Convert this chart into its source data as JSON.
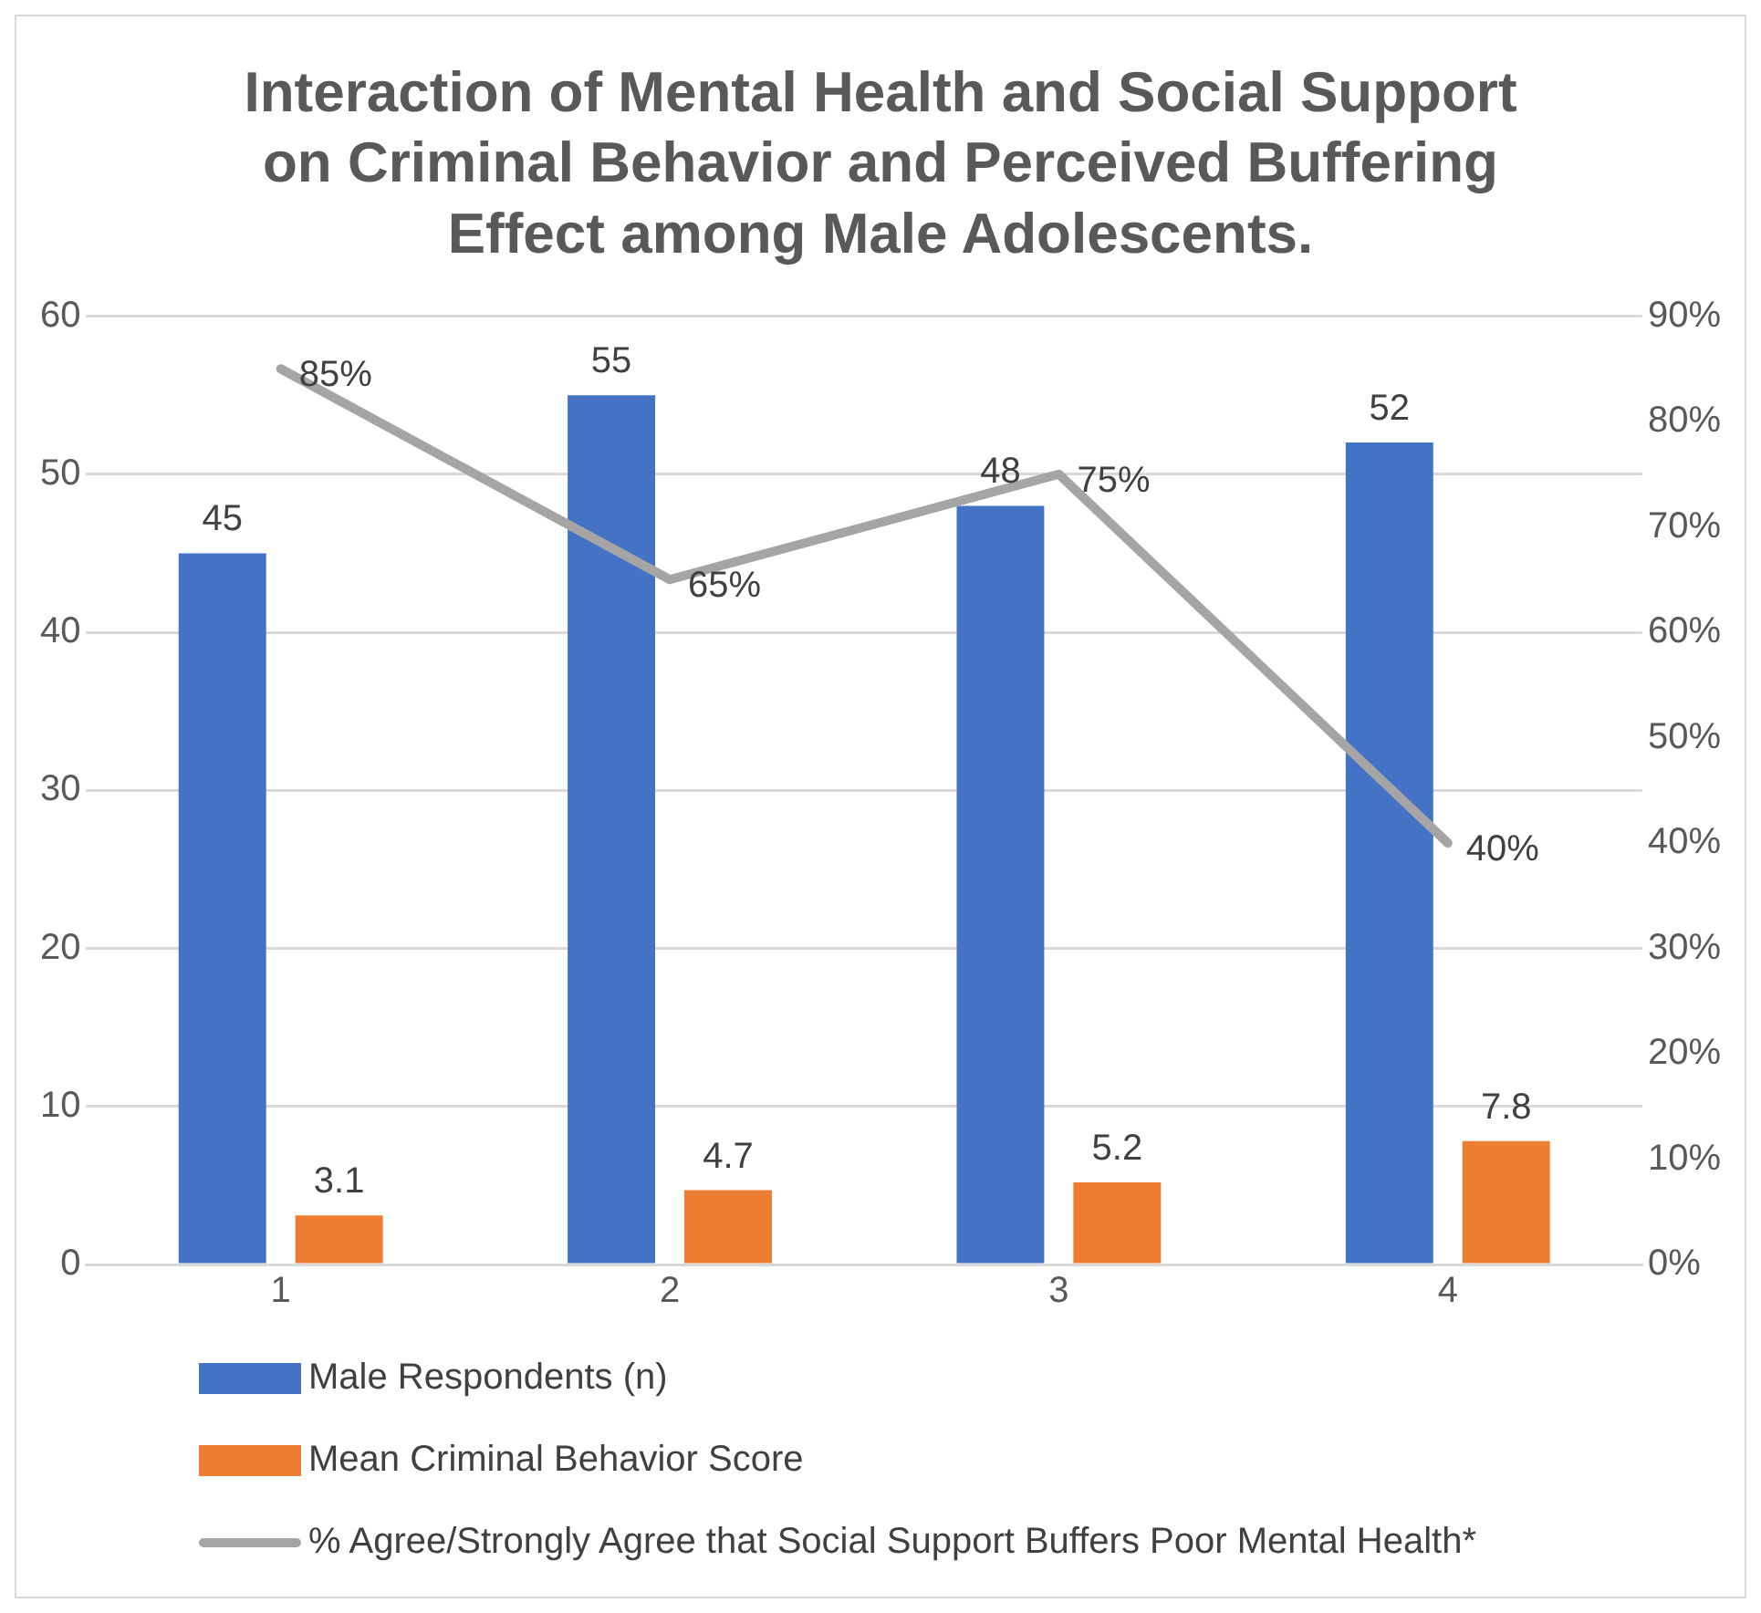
{
  "chart_data": {
    "type": "bar",
    "title": "Interaction of Mental Health and Social Support on Criminal Behavior and Perceived Buffering Effect among Male Adolescents.",
    "categories": [
      "1",
      "2",
      "3",
      "4"
    ],
    "series": [
      {
        "name": "Male Respondents (n)",
        "color": "#4472c4",
        "values": [
          45,
          55,
          48,
          52
        ],
        "value_labels": [
          "45",
          "55",
          "48",
          "52"
        ]
      },
      {
        "name": "Mean Criminal Behavior Score",
        "color": "#ed7d31",
        "values": [
          3.1,
          4.7,
          5.2,
          7.8
        ],
        "value_labels": [
          "3.1",
          "4.7",
          "5.2",
          "7.8"
        ]
      },
      {
        "name": "% Agree/Strongly Agree that Social Support Buffers Poor Mental Health*",
        "type": "line",
        "axis": "y2",
        "color": "#a5a5a5",
        "values": [
          85,
          65,
          75,
          40
        ],
        "value_labels": [
          "85%",
          "65%",
          "75%",
          "40%"
        ],
        "marker": "none",
        "line_style": "solid"
      }
    ],
    "ylim": [
      0,
      60
    ],
    "yticks": [
      0,
      10,
      20,
      30,
      40,
      50,
      60
    ],
    "y2lim": [
      0,
      90
    ],
    "y2ticks": [
      {
        "value": 0,
        "label": "0%"
      },
      {
        "value": 10,
        "label": "10%"
      },
      {
        "value": 20,
        "label": "20%"
      },
      {
        "value": 30,
        "label": "30%"
      },
      {
        "value": 40,
        "label": "40%"
      },
      {
        "value": 50,
        "label": "50%"
      },
      {
        "value": 60,
        "label": "60%"
      },
      {
        "value": 70,
        "label": "70%"
      },
      {
        "value": 80,
        "label": "80%"
      },
      {
        "value": 90,
        "label": "90%"
      }
    ],
    "grid": "y",
    "legend": "bottom"
  }
}
